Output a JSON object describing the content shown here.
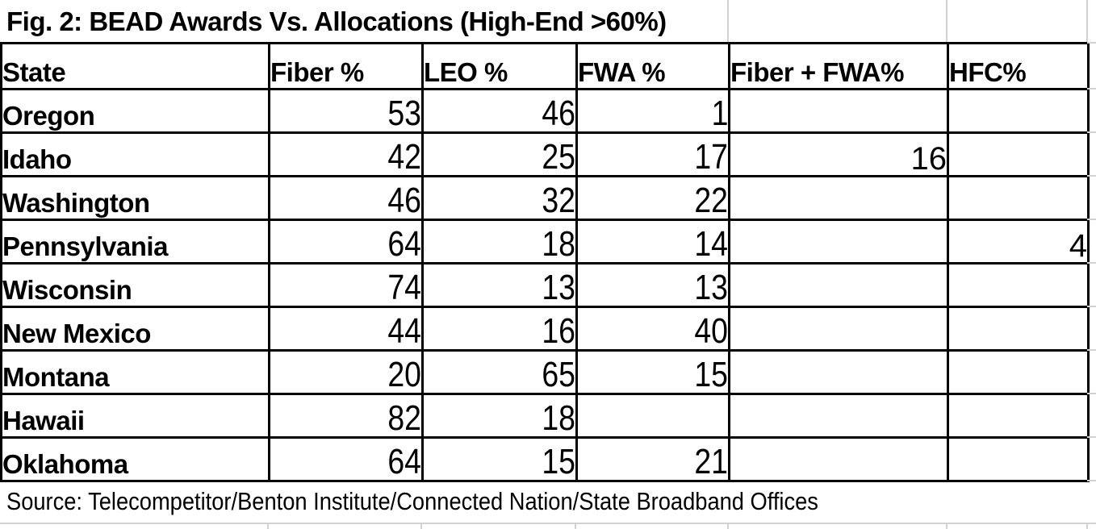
{
  "title": "Fig. 2: BEAD Awards Vs. Allocations (High-End >60%)",
  "table": {
    "columns": [
      "State",
      "Fiber %",
      "LEO %",
      "FWA %",
      "Fiber + FWA%",
      "HFC%"
    ],
    "rows": [
      {
        "state": "Oregon",
        "fiber": "53",
        "leo": "46",
        "fwa": "1",
        "fiber_fwa": "",
        "hfc": ""
      },
      {
        "state": "Idaho",
        "fiber": "42",
        "leo": "25",
        "fwa": "17",
        "fiber_fwa": "16",
        "hfc": ""
      },
      {
        "state": "Washington",
        "fiber": "46",
        "leo": "32",
        "fwa": "22",
        "fiber_fwa": "",
        "hfc": ""
      },
      {
        "state": "Pennsylvania",
        "fiber": "64",
        "leo": "18",
        "fwa": "14",
        "fiber_fwa": "",
        "hfc": "4"
      },
      {
        "state": "Wisconsin",
        "fiber": "74",
        "leo": "13",
        "fwa": "13",
        "fiber_fwa": "",
        "hfc": ""
      },
      {
        "state": "New Mexico",
        "fiber": "44",
        "leo": "16",
        "fwa": "40",
        "fiber_fwa": "",
        "hfc": ""
      },
      {
        "state": "Montana",
        "fiber": "20",
        "leo": "65",
        "fwa": "15",
        "fiber_fwa": "",
        "hfc": ""
      },
      {
        "state": "Hawaii",
        "fiber": "82",
        "leo": "18",
        "fwa": "",
        "fiber_fwa": "",
        "hfc": ""
      },
      {
        "state": "Oklahoma",
        "fiber": "64",
        "leo": "15",
        "fwa": "21",
        "fiber_fwa": "",
        "hfc": ""
      }
    ]
  },
  "source": "Source: Telecompetitor/Benton Institute/Connected Nation/State Broadband Offices",
  "colors": {
    "border": "#000000",
    "gridline": "#d2d2d2",
    "background": "#ffffff",
    "text": "#000000"
  },
  "chart_data": {
    "type": "table",
    "title": "Fig. 2: BEAD Awards Vs. Allocations (High-End >60%)",
    "columns": [
      "State",
      "Fiber %",
      "LEO %",
      "FWA %",
      "Fiber + FWA%",
      "HFC%"
    ],
    "rows": [
      [
        "Oregon",
        53,
        46,
        1,
        null,
        null
      ],
      [
        "Idaho",
        42,
        25,
        17,
        16,
        null
      ],
      [
        "Washington",
        46,
        32,
        22,
        null,
        null
      ],
      [
        "Pennsylvania",
        64,
        18,
        14,
        null,
        4
      ],
      [
        "Wisconsin",
        74,
        13,
        13,
        null,
        null
      ],
      [
        "New Mexico",
        44,
        16,
        40,
        null,
        null
      ],
      [
        "Montana",
        20,
        65,
        15,
        null,
        null
      ],
      [
        "Hawaii",
        82,
        18,
        null,
        null,
        null
      ],
      [
        "Oklahoma",
        64,
        15,
        21,
        null,
        null
      ]
    ],
    "source_note": "Source: Telecompetitor/Benton Institute/Connected Nation/State Broadband Offices"
  }
}
